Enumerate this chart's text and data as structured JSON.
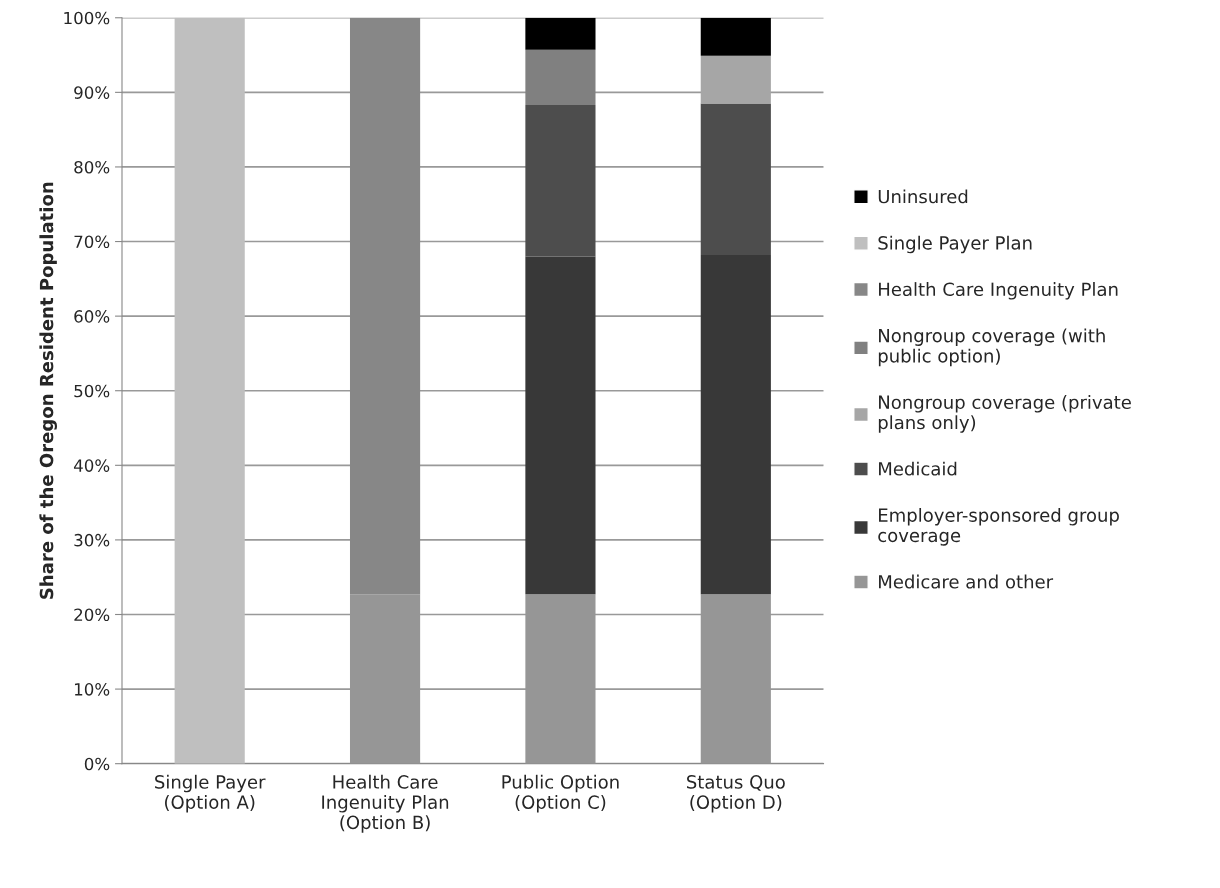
{
  "chart_data": {
    "type": "bar",
    "stacked": true,
    "ylabel": "Share of the Oregon Resident Population",
    "categories": [
      "Single Payer\n(Option A)",
      "Health Care\nIngenuity Plan\n(Option B)",
      "Public Option\n(Option C)",
      "Status Quo\n(Option D)"
    ],
    "series": [
      {
        "name": "Medicare and other",
        "color": "#969696",
        "values": [
          null,
          22.7,
          22.7,
          22.7
        ]
      },
      {
        "name": "Employer-sponsored group\ncoverage",
        "color": "#383838",
        "values": [
          null,
          null,
          45.3,
          45.5
        ]
      },
      {
        "name": "Medicaid",
        "color": "#4d4d4d",
        "values": [
          null,
          null,
          20.3,
          20.3
        ]
      },
      {
        "name": "Nongroup coverage (private\nplans only)",
        "color": "#a6a6a6",
        "values": [
          null,
          null,
          null,
          6.4
        ]
      },
      {
        "name": "Nongroup coverage (with\npublic option)",
        "color": "#808080",
        "values": [
          null,
          null,
          7.4,
          null
        ]
      },
      {
        "name": "Health Care Ingenuity Plan",
        "color": "#878787",
        "values": [
          null,
          77.3,
          null,
          null
        ]
      },
      {
        "name": "Single Payer Plan",
        "color": "#bfbfbf",
        "values": [
          100,
          null,
          null,
          null
        ]
      },
      {
        "name": "Uninsured",
        "color": "#000000",
        "values": [
          null,
          null,
          4.3,
          5.1
        ]
      }
    ],
    "ylim": [
      0,
      100
    ],
    "yticks": [
      {
        "value": 0,
        "label": "0%"
      },
      {
        "value": 10,
        "label": "10%"
      },
      {
        "value": 20,
        "label": "20%"
      },
      {
        "value": 30,
        "label": "30%"
      },
      {
        "value": 40,
        "label": "40%"
      },
      {
        "value": 50,
        "label": "50%"
      },
      {
        "value": 60,
        "label": "60%"
      },
      {
        "value": 70,
        "label": "70%"
      },
      {
        "value": 80,
        "label": "80%"
      },
      {
        "value": 90,
        "label": "90%"
      },
      {
        "value": 100,
        "label": "100%"
      }
    ],
    "grid": "y",
    "legend": "right"
  }
}
